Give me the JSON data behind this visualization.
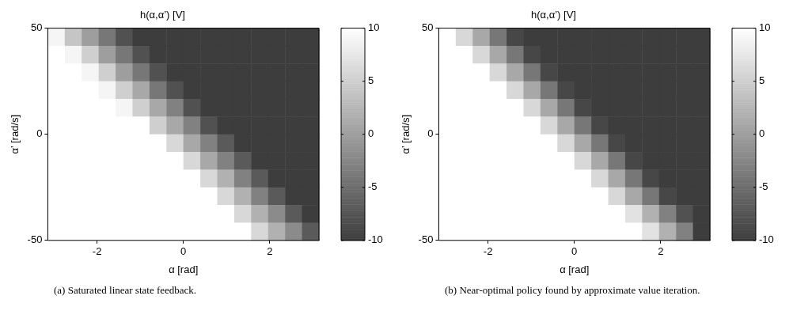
{
  "chart_data": [
    {
      "type": "heatmap",
      "title": "h(α,α’) [V]",
      "xlabel": "α [rad]",
      "ylabel": "α’ [rad/s]",
      "annotations": [
        "(a) Saturated linear state feedback."
      ],
      "xlim": [
        -3.1416,
        3.1416
      ],
      "xticks": [
        -2,
        0,
        2
      ],
      "ylim": [
        -50,
        50
      ],
      "yticks": [
        -50,
        0,
        50
      ],
      "clim": [
        -10,
        10
      ],
      "cticks": [
        -10,
        -5,
        0,
        5,
        10
      ],
      "x": [
        -2.945,
        -2.553,
        -2.16,
        -1.767,
        -1.374,
        -0.982,
        -0.589,
        -0.196,
        0.196,
        0.589,
        0.982,
        1.374,
        1.767,
        2.16,
        2.553,
        2.945
      ],
      "y": [
        45.83,
        37.5,
        29.17,
        20.83,
        12.5,
        4.17,
        -4.17,
        -12.5,
        -20.83,
        -29.17,
        -37.5,
        -45.83
      ],
      "cells": [
        [
          9,
          4,
          0,
          -4,
          -8,
          -10,
          -10,
          -10,
          -10,
          -10,
          -10,
          -10,
          -10,
          -10,
          -10,
          -10
        ],
        [
          10,
          9,
          5,
          0,
          -4,
          -8,
          -10,
          -10,
          -10,
          -10,
          -10,
          -10,
          -10,
          -10,
          -10,
          -10
        ],
        [
          10,
          10,
          9,
          5,
          0,
          -4,
          -8,
          -10,
          -10,
          -10,
          -10,
          -10,
          -10,
          -10,
          -10,
          -10
        ],
        [
          10,
          10,
          10,
          9,
          5,
          1,
          -4,
          -8,
          -10,
          -10,
          -10,
          -10,
          -10,
          -10,
          -10,
          -10
        ],
        [
          10,
          10,
          10,
          10,
          9,
          5,
          1,
          -3,
          -8,
          -10,
          -10,
          -10,
          -10,
          -10,
          -10,
          -10
        ],
        [
          10,
          10,
          10,
          10,
          10,
          10,
          5,
          1,
          -3,
          -8,
          -10,
          -10,
          -10,
          -10,
          -10,
          -10
        ],
        [
          10,
          10,
          10,
          10,
          10,
          10,
          10,
          6,
          1,
          -3,
          -7,
          -10,
          -10,
          -10,
          -10,
          -10
        ],
        [
          10,
          10,
          10,
          10,
          10,
          10,
          10,
          10,
          6,
          1,
          -3,
          -7,
          -10,
          -10,
          -10,
          -10
        ],
        [
          10,
          10,
          10,
          10,
          10,
          10,
          10,
          10,
          10,
          6,
          2,
          -3,
          -7,
          -10,
          -10,
          -10
        ],
        [
          10,
          10,
          10,
          10,
          10,
          10,
          10,
          10,
          10,
          10,
          6,
          2,
          -3,
          -7,
          -10,
          -10
        ],
        [
          10,
          10,
          10,
          10,
          10,
          10,
          10,
          10,
          10,
          10,
          10,
          6,
          2,
          -2,
          -7,
          -10
        ],
        [
          10,
          10,
          10,
          10,
          10,
          10,
          10,
          10,
          10,
          10,
          10,
          10,
          6,
          2,
          -2,
          -7
        ]
      ]
    },
    {
      "type": "heatmap",
      "title": "h(α,α’) [V]",
      "xlabel": "α [rad]",
      "ylabel": "α’ [rad/s]",
      "annotations": [
        "(b) Near-optimal policy found by approximate value iteration."
      ],
      "xlim": [
        -3.1416,
        3.1416
      ],
      "xticks": [
        -2,
        0,
        2
      ],
      "ylim": [
        -50,
        50
      ],
      "yticks": [
        -50,
        0,
        50
      ],
      "clim": [
        -10,
        10
      ],
      "cticks": [
        -10,
        -5,
        0,
        5,
        10
      ],
      "x": [
        -2.945,
        -2.553,
        -2.16,
        -1.767,
        -1.374,
        -0.982,
        -0.589,
        -0.196,
        0.196,
        0.589,
        0.982,
        1.374,
        1.767,
        2.16,
        2.553,
        2.945
      ],
      "y": [
        45.83,
        37.5,
        29.17,
        20.83,
        12.5,
        4.17,
        -4.17,
        -12.5,
        -20.83,
        -29.17,
        -37.5,
        -45.83
      ],
      "cells": [
        [
          10,
          6,
          1,
          -4,
          -9,
          -10,
          -10,
          -10,
          -10,
          -10,
          -10,
          -10,
          -10,
          -10,
          -10,
          -10
        ],
        [
          10,
          10,
          6,
          1,
          -4,
          -9,
          -10,
          -10,
          -10,
          -10,
          -10,
          -10,
          -10,
          -10,
          -10,
          -10
        ],
        [
          10,
          10,
          10,
          6,
          1,
          -4,
          -9,
          -10,
          -10,
          -10,
          -10,
          -10,
          -10,
          -10,
          -10,
          -10
        ],
        [
          10,
          10,
          10,
          10,
          6,
          1,
          -4,
          -9,
          -10,
          -10,
          -10,
          -10,
          -10,
          -10,
          -10,
          -10
        ],
        [
          10,
          10,
          10,
          10,
          10,
          6,
          1,
          -4,
          -9,
          -10,
          -10,
          -10,
          -10,
          -10,
          -10,
          -10
        ],
        [
          10,
          10,
          10,
          10,
          10,
          10,
          6,
          1,
          -4,
          -9,
          -10,
          -10,
          -10,
          -10,
          -10,
          -10
        ],
        [
          10,
          10,
          10,
          10,
          10,
          10,
          10,
          6,
          1,
          -4,
          -9,
          -10,
          -10,
          -10,
          -10,
          -10
        ],
        [
          10,
          10,
          10,
          10,
          10,
          10,
          10,
          10,
          6,
          1,
          -4,
          -9,
          -10,
          -10,
          -10,
          -10
        ],
        [
          10,
          10,
          10,
          10,
          10,
          10,
          10,
          10,
          10,
          6,
          1,
          -4,
          -9,
          -10,
          -10,
          -10
        ],
        [
          10,
          10,
          10,
          10,
          10,
          10,
          10,
          10,
          10,
          10,
          6,
          1,
          -4,
          -9,
          -10,
          -10
        ],
        [
          10,
          10,
          10,
          10,
          10,
          10,
          10,
          10,
          10,
          10,
          10,
          7,
          2,
          -3,
          -8,
          -10
        ],
        [
          10,
          10,
          10,
          10,
          10,
          10,
          10,
          10,
          10,
          10,
          10,
          10,
          7,
          2,
          -3,
          -10
        ]
      ]
    }
  ]
}
